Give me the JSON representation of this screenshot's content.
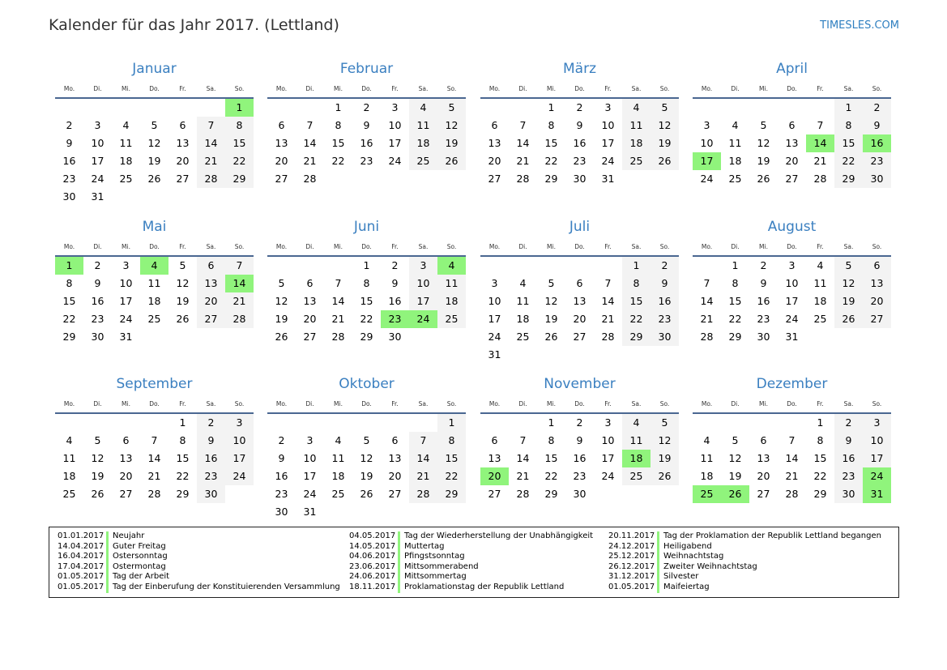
{
  "title": "Kalender für das Jahr 2017. (Lettland)",
  "brand": "TIMESLES.COM",
  "colors": {
    "holiday": "#90f47c",
    "weekend": "#f3f3f3",
    "month_title": "#3a7fc0",
    "rule": "#4a6791"
  },
  "weekdays": [
    "Mo.",
    "Di.",
    "Mi.",
    "Do.",
    "Fr.",
    "Sa.",
    "So."
  ],
  "months": [
    {
      "name": "Januar",
      "first_weekday": "So.",
      "days": 31,
      "holidays": [
        1
      ]
    },
    {
      "name": "Februar",
      "first_weekday": "Mi.",
      "days": 28,
      "holidays": []
    },
    {
      "name": "März",
      "first_weekday": "Mi.",
      "days": 31,
      "holidays": []
    },
    {
      "name": "April",
      "first_weekday": "Sa.",
      "days": 30,
      "holidays": [
        14,
        16,
        17
      ]
    },
    {
      "name": "Mai",
      "first_weekday": "Mo.",
      "days": 31,
      "holidays": [
        1,
        4,
        14
      ]
    },
    {
      "name": "Juni",
      "first_weekday": "Do.",
      "days": 30,
      "holidays": [
        4,
        23,
        24
      ]
    },
    {
      "name": "Juli",
      "first_weekday": "Sa.",
      "days": 31,
      "holidays": []
    },
    {
      "name": "August",
      "first_weekday": "Di.",
      "days": 31,
      "holidays": []
    },
    {
      "name": "September",
      "first_weekday": "Fr.",
      "days": 30,
      "holidays": []
    },
    {
      "name": "Oktober",
      "first_weekday": "So.",
      "days": 31,
      "holidays": []
    },
    {
      "name": "November",
      "first_weekday": "Mi.",
      "days": 30,
      "holidays": [
        18,
        20
      ]
    },
    {
      "name": "Dezember",
      "first_weekday": "Fr.",
      "days": 31,
      "holidays": [
        24,
        25,
        26,
        31
      ]
    }
  ],
  "legend": [
    [
      {
        "date": "01.01.2017",
        "name": "Neujahr"
      },
      {
        "date": "14.04.2017",
        "name": "Guter Freitag"
      },
      {
        "date": "16.04.2017",
        "name": "Ostersonntag"
      },
      {
        "date": "17.04.2017",
        "name": "Ostermontag"
      },
      {
        "date": "01.05.2017",
        "name": "Tag der Arbeit"
      },
      {
        "date": "01.05.2017",
        "name": "Tag der Einberufung der Konstituierenden Versammlung"
      }
    ],
    [
      {
        "date": "04.05.2017",
        "name": "Tag der Wiederherstellung der Unabhängigkeit"
      },
      {
        "date": "14.05.2017",
        "name": "Muttertag"
      },
      {
        "date": "04.06.2017",
        "name": "Pfingstsonntag"
      },
      {
        "date": "23.06.2017",
        "name": "Mittsommerabend"
      },
      {
        "date": "24.06.2017",
        "name": "Mittsommertag"
      },
      {
        "date": "18.11.2017",
        "name": "Proklamationstag der Republik Lettland"
      }
    ],
    [
      {
        "date": "20.11.2017",
        "name": "Tag der Proklamation der Republik Lettland begangen"
      },
      {
        "date": "24.12.2017",
        "name": "Heiligabend"
      },
      {
        "date": "25.12.2017",
        "name": "Weihnachtstag"
      },
      {
        "date": "26.12.2017",
        "name": "Zweiter Weihnachtstag"
      },
      {
        "date": "31.12.2017",
        "name": "Silvester"
      },
      {
        "date": "01.05.2017",
        "name": "Maifeiertag"
      }
    ]
  ]
}
